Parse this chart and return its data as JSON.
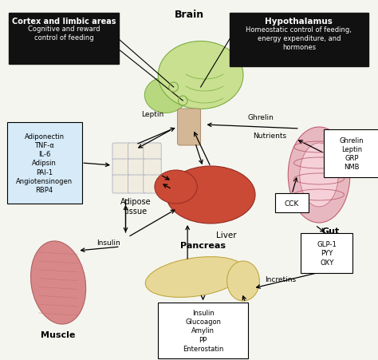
{
  "bg_color": "#f5f5f0",
  "title_brain": "Brain",
  "box_left_title": "Cortex and limbic areas",
  "box_left_text": "Cognitive and reward\ncontrol of feeding",
  "box_right_title": "Hypothalamus",
  "box_right_text": "Homeostatic control of feeding,\nenergy expenditure, and\nhormones",
  "box_adiponectin": "Adiponectin\nTNF-α\nIL-6\nAdipsin\nPAI-1\nAngiotensinogen\nRBP4",
  "label_adipose": "Adipose\ntissue",
  "label_liver": "Liver",
  "label_gut": "Gut",
  "label_muscle": "Muscle",
  "label_pancreas": "Pancreas",
  "label_leptin": "Leptin",
  "label_ghrelin": "Ghrelin",
  "label_nutrients": "Nutrients",
  "label_insulin": "Insulin",
  "label_incretins": "Incretins",
  "box_gut_hormones": "Ghrelin\nLeptin\nGRP\nNMB",
  "box_cck": "CCK",
  "box_glp": "GLP-1\nPYY\nOXY",
  "box_pancreas_hormones": "Insulin\nGlucoagon\nAmylin\nPP\nEnterostatin",
  "black_box_color": "#111111",
  "white_box_color": "#ffffff",
  "light_blue_box_color": "#d6eaf8",
  "arrow_color": "#111111"
}
